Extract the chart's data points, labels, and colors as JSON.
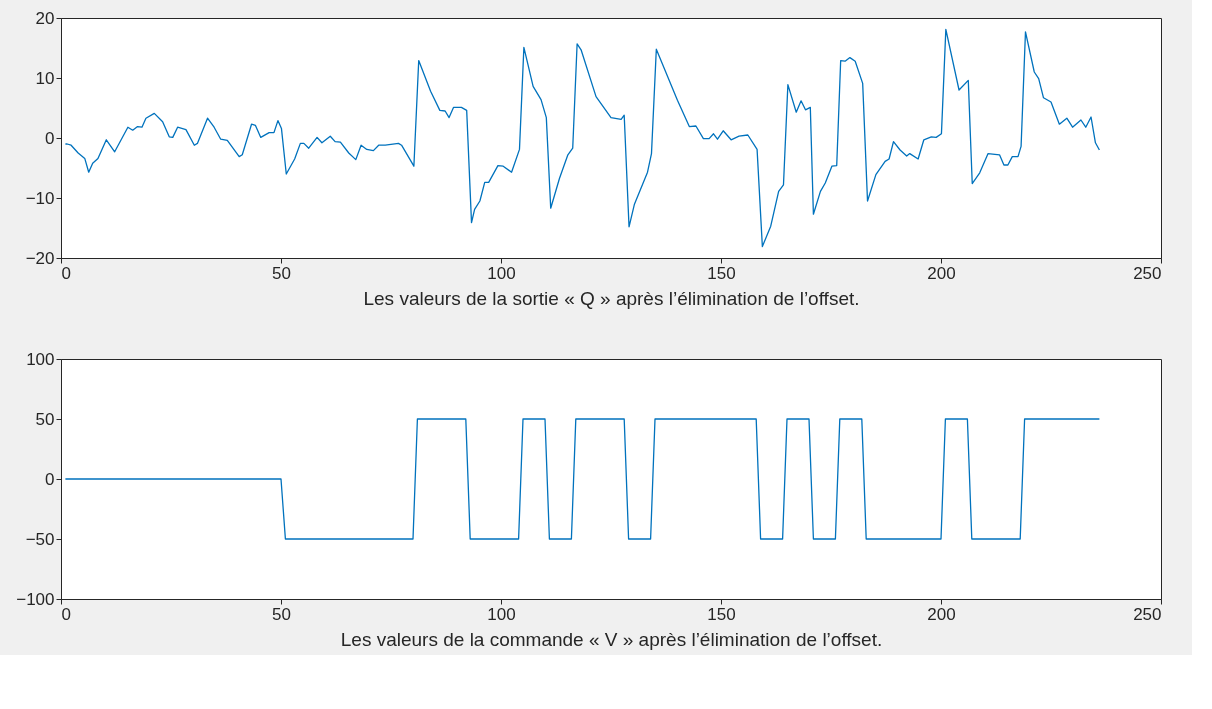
{
  "chart_data": [
    {
      "type": "line",
      "line_style": "solid",
      "xlabel": "Les valeurs de la sortie « Q » après l’élimination de l’offset.",
      "color": "#0072bd",
      "xlim": [
        0,
        250
      ],
      "xticks": [
        0,
        50,
        100,
        150,
        200,
        250
      ],
      "ylim": [
        -20,
        20
      ],
      "yticks": [
        -20,
        -10,
        0,
        10,
        20
      ],
      "grid": false,
      "x": [
        1,
        1.4,
        2.3,
        3.9,
        5.4,
        6.3,
        7.2,
        8.4,
        10.3,
        12.2,
        15.2,
        16.3,
        17.4,
        18.4,
        19.3,
        21.2,
        23.1,
        24.6,
        25.4,
        26.5,
        28.4,
        30.3,
        31.0,
        33.3,
        34.8,
        36.3,
        37.8,
        40.5,
        41.2,
        43.3,
        44.2,
        45.4,
        47.3,
        48.4,
        49.3,
        50.1,
        51.2,
        53.1,
        54.4,
        55.2,
        56.3,
        58.2,
        59.3,
        61.2,
        62.3,
        63.5,
        65.4,
        67.0,
        68.2,
        69.5,
        71.0,
        72.2,
        73.7,
        76.7,
        77.4,
        80.2,
        81.3,
        84.0,
        86.1,
        87.3,
        88.2,
        89.2,
        91.0,
        92.2,
        93.3,
        94.0,
        95.2,
        96.3,
        97.2,
        99.3,
        100.5,
        102.4,
        104.2,
        105.2,
        107.3,
        109.1,
        110.3,
        111.3,
        113.3,
        115.2,
        116.3,
        117.3,
        118.2,
        121.6,
        125.0,
        127.3,
        128.0,
        129.1,
        130.3,
        133.3,
        134.2,
        135.3,
        140.1,
        142.8,
        144.3,
        146.0,
        147.3,
        148.3,
        149.2,
        150.5,
        152.3,
        154.1,
        156.1,
        158.2,
        159.4,
        161.3,
        163.1,
        164.2,
        165.2,
        167.1,
        168.2,
        169.2,
        170.3,
        171.0,
        172.6,
        173.7,
        175.2,
        176.3,
        177.2,
        178.2,
        179.3,
        180.5,
        182.2,
        183.3,
        185.2,
        187.3,
        188.2,
        189.2,
        190.7,
        192.2,
        192.9,
        194.8,
        196.1,
        197.8,
        198.9,
        200.1,
        201.1,
        204.1,
        206.2,
        207.1,
        208.8,
        210.7,
        213.3,
        214.3,
        215.2,
        216.2,
        217.5,
        218.2,
        219.2,
        221.2,
        222.2,
        223.3,
        225.0,
        226.9,
        228.6,
        229.9,
        231.8,
        232.9,
        234.1,
        235.1,
        236.0
      ],
      "values": [
        -1.0,
        -1.0,
        -1.2,
        -2.5,
        -3.4,
        -5.7,
        -4.2,
        -3.4,
        -0.3,
        -2.3,
        1.8,
        1.3,
        1.9,
        1.8,
        3.3,
        4.1,
        2.7,
        0.2,
        0.1,
        1.8,
        1.4,
        -1.2,
        -0.9,
        3.3,
        1.8,
        -0.2,
        -0.4,
        -3.1,
        -2.8,
        2.3,
        2.1,
        0.1,
        0.9,
        0.9,
        2.9,
        1.6,
        -6.0,
        -3.5,
        -0.9,
        -0.9,
        -1.7,
        0.1,
        -0.8,
        0.3,
        -0.6,
        -0.7,
        -2.5,
        -3.6,
        -1.2,
        -1.9,
        -2.1,
        -1.2,
        -1.2,
        -0.9,
        -1.2,
        -4.7,
        12.9,
        7.8,
        4.6,
        4.5,
        3.4,
        5.1,
        5.1,
        4.6,
        -14.1,
        -11.9,
        -10.5,
        -7.4,
        -7.4,
        -4.6,
        -4.7,
        -5.7,
        -1.9,
        15.1,
        8.6,
        6.4,
        3.4,
        -11.7,
        -6.7,
        -2.8,
        -1.7,
        15.7,
        14.7,
        6.9,
        3.4,
        3.1,
        3.8,
        -14.8,
        -11.1,
        -5.7,
        -2.6,
        14.8,
        6.3,
        1.9,
        2.0,
        -0.1,
        -0.1,
        0.7,
        -0.2,
        1.2,
        -0.3,
        0.3,
        0.5,
        -1.9,
        -18.1,
        -14.7,
        -8.9,
        -7.8,
        8.9,
        4.3,
        6.2,
        4.7,
        5.1,
        -12.7,
        -8.9,
        -7.5,
        -4.7,
        -4.6,
        12.9,
        12.8,
        13.4,
        12.8,
        9.1,
        -10.5,
        -6.1,
        -3.9,
        -3.5,
        -0.6,
        -2.0,
        -3.0,
        -2.6,
        -3.5,
        -0.3,
        0.2,
        0.1,
        0.7,
        18.1,
        8.0,
        9.6,
        -7.6,
        -5.8,
        -2.6,
        -2.8,
        -4.5,
        -4.5,
        -3.1,
        -3.1,
        -1.4,
        17.7,
        11.0,
        9.9,
        6.7,
        6.0,
        2.3,
        3.3,
        1.8,
        3.0,
        1.8,
        3.5,
        -0.8,
        -2.0
      ]
    },
    {
      "type": "line",
      "line_style": "solid",
      "xlabel": "Les valeurs de  la commande « V » après l’élimination de l’offset.",
      "color": "#0072bd",
      "xlim": [
        0,
        250
      ],
      "xticks": [
        0,
        50,
        100,
        150,
        200,
        250
      ],
      "ylim": [
        -100,
        100
      ],
      "yticks": [
        -100,
        -50,
        0,
        50,
        100
      ],
      "grid": false,
      "x": [
        1,
        50,
        51,
        80,
        81,
        92,
        93,
        104,
        105,
        110,
        111,
        116,
        117,
        128,
        129,
        134,
        135,
        158,
        159,
        164,
        165,
        170,
        171,
        176,
        177,
        182,
        183,
        200,
        201,
        206,
        207,
        218,
        219,
        236
      ],
      "values": [
        0,
        0,
        -50,
        -50,
        50,
        50,
        -50,
        -50,
        50,
        50,
        -50,
        -50,
        50,
        50,
        -50,
        -50,
        50,
        50,
        -50,
        -50,
        50,
        50,
        -50,
        -50,
        50,
        50,
        -50,
        -50,
        50,
        50,
        -50,
        -50,
        50,
        50
      ]
    }
  ]
}
